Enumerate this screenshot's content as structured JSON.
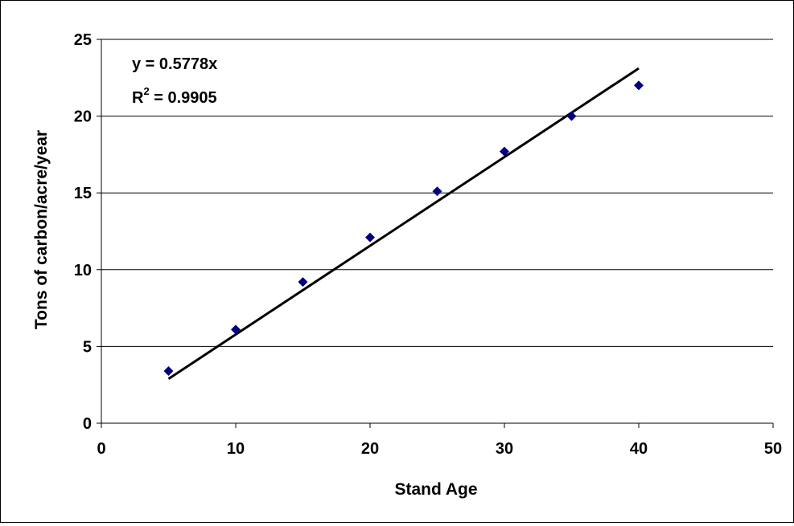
{
  "chart_data": {
    "type": "scatter",
    "title": "",
    "xlabel": "Stand Age",
    "ylabel": "Tons of carbon/acre/year",
    "xlim": [
      0,
      50
    ],
    "ylim": [
      0,
      25
    ],
    "xticks": [
      "0",
      "10",
      "20",
      "30",
      "40",
      "50"
    ],
    "yticks": [
      "0",
      "5",
      "10",
      "15",
      "20",
      "25"
    ],
    "grid": "horizontal",
    "legend": "none",
    "series": [
      {
        "marker": "diamond",
        "color": "#000080",
        "x": [
          5,
          10,
          15,
          20,
          25,
          30,
          35,
          40
        ],
        "y": [
          3.4,
          6.1,
          9.2,
          12.1,
          15.1,
          17.7,
          20.0,
          22.0
        ]
      }
    ],
    "trendline": {
      "slope": 0.5778,
      "x_range": [
        5,
        40
      ],
      "color": "#000000",
      "equation_label": "y = 0.5778x",
      "r2_prefix": "R",
      "r2_superscript": "2",
      "r2_value": " = 0.9905"
    }
  }
}
